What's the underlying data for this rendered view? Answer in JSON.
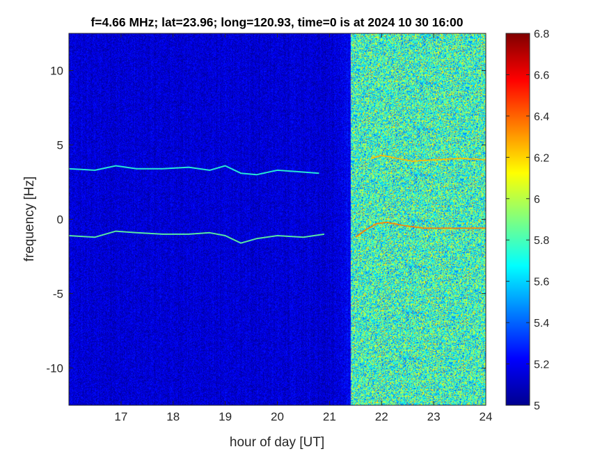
{
  "chart_data": {
    "type": "heatmap",
    "title": "f=4.66 MHz;  lat=23.96; long=120.93, time=0 is at 2024 10 30 16:00",
    "xlabel": "hour of day [UT]",
    "ylabel": "frequency [Hz]",
    "xlim": [
      16,
      24
    ],
    "ylim": [
      -12.5,
      12.5
    ],
    "xticks": [
      17,
      18,
      19,
      20,
      21,
      22,
      23,
      24
    ],
    "yticks": [
      -10,
      -5,
      0,
      5,
      10
    ],
    "colorbar": {
      "colormap": "jet",
      "range": [
        5,
        6.8
      ],
      "ticks": [
        5,
        5.2,
        5.4,
        5.6,
        5.8,
        6,
        6.2,
        6.4,
        6.6,
        6.8
      ],
      "tick_labels": [
        "5",
        "5.2",
        "5.4",
        "5.6",
        "5.8",
        "6",
        "6.2",
        "6.4",
        "6.6",
        "6.8"
      ]
    },
    "background": {
      "quiet_period": {
        "x_range": [
          16,
          21.4
        ],
        "level": 5.15
      },
      "noisy_period": {
        "x_range": [
          21.4,
          24
        ],
        "level": 5.75
      }
    },
    "traces": [
      {
        "level": 5.75,
        "points": [
          [
            16.0,
            3.4
          ],
          [
            16.5,
            3.3
          ],
          [
            16.9,
            3.6
          ],
          [
            17.3,
            3.4
          ],
          [
            17.8,
            3.4
          ],
          [
            18.3,
            3.5
          ],
          [
            18.7,
            3.3
          ],
          [
            19.0,
            3.6
          ],
          [
            19.3,
            3.1
          ],
          [
            19.6,
            3.0
          ],
          [
            20.0,
            3.3
          ],
          [
            20.4,
            3.2
          ],
          [
            20.8,
            3.1
          ]
        ]
      },
      {
        "level": 5.85,
        "points": [
          [
            16.0,
            -1.1
          ],
          [
            16.5,
            -1.2
          ],
          [
            16.9,
            -0.8
          ],
          [
            17.3,
            -0.9
          ],
          [
            17.8,
            -1.0
          ],
          [
            18.3,
            -1.0
          ],
          [
            18.7,
            -0.9
          ],
          [
            19.0,
            -1.1
          ],
          [
            19.3,
            -1.6
          ],
          [
            19.6,
            -1.3
          ],
          [
            20.0,
            -1.1
          ],
          [
            20.5,
            -1.2
          ],
          [
            20.9,
            -1.0
          ]
        ]
      },
      {
        "level": 6.35,
        "points": [
          [
            21.5,
            -1.2
          ],
          [
            21.7,
            -0.7
          ],
          [
            21.9,
            -0.3
          ],
          [
            22.1,
            -0.2
          ],
          [
            22.4,
            -0.4
          ],
          [
            22.8,
            -0.6
          ],
          [
            23.3,
            -0.6
          ],
          [
            24.0,
            -0.6
          ]
        ]
      },
      {
        "level": 6.25,
        "points": [
          [
            21.8,
            4.1
          ],
          [
            22.0,
            4.3
          ],
          [
            22.3,
            4.1
          ],
          [
            22.6,
            3.9
          ],
          [
            23.0,
            4.0
          ],
          [
            23.5,
            4.1
          ],
          [
            24.0,
            4.0
          ]
        ]
      }
    ]
  }
}
